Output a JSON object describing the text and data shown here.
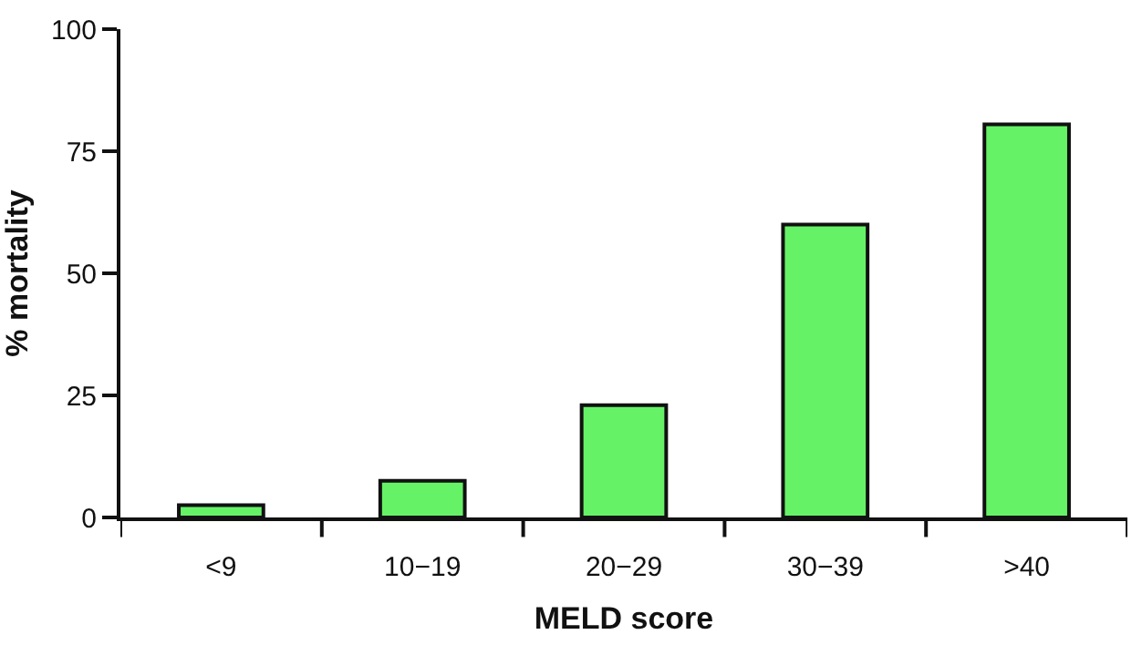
{
  "chart_data": {
    "type": "bar",
    "xlabel": "MELD score",
    "ylabel": "% mortality",
    "categories": [
      "<9",
      "10−19",
      "20−29",
      "30−39",
      ">40"
    ],
    "values": [
      2.5,
      7.5,
      23,
      60,
      80.5
    ],
    "color": "#66f266",
    "ylim": [
      0,
      100
    ],
    "yticks": [
      0,
      25,
      50,
      75,
      100
    ]
  }
}
